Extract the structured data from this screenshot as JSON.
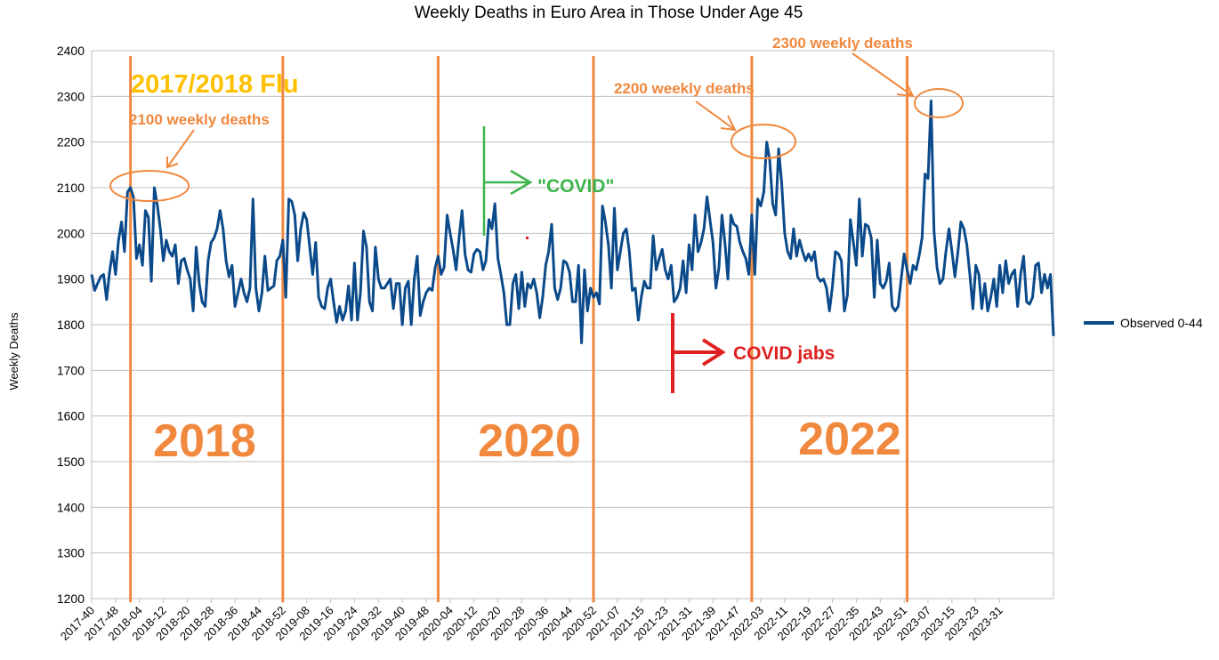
{
  "chart_data": {
    "type": "line",
    "title": "Weekly Deaths in Euro Area in Those Under Age 45",
    "ylabel": "Weekly Deaths",
    "xlabel": "",
    "ylim": [
      1200,
      2400
    ],
    "yticks": [
      1200,
      1300,
      1400,
      1500,
      1600,
      1700,
      1800,
      1900,
      2000,
      2100,
      2200,
      2300,
      2400
    ],
    "grid": true,
    "legend_position": "right",
    "x_tick_labels": [
      "2017-40",
      "2017-48",
      "2018-04",
      "2018-12",
      "2018-20",
      "2018-28",
      "2018-36",
      "2018-44",
      "2018-52",
      "2019-08",
      "2019-16",
      "2019-24",
      "2019-32",
      "2019-40",
      "2019-48",
      "2020-04",
      "2020-12",
      "2020-20",
      "2020-28",
      "2020-36",
      "2020-44",
      "2020-52",
      "2021-07",
      "2021-15",
      "2021-23",
      "2021-31",
      "2021-39",
      "2021-47",
      "2022-03",
      "2022-11",
      "2022-19",
      "2022-27",
      "2022-35",
      "2022-43",
      "2022-51",
      "2023-07",
      "2023-15",
      "2023-23",
      "2023-31"
    ],
    "series": [
      {
        "name": "Observed 0-44",
        "color": "#0b4a8a",
        "values": [
          1910,
          1875,
          1890,
          1905,
          1910,
          1855,
          1915,
          1960,
          1910,
          1985,
          2025,
          1960,
          2090,
          2100,
          2080,
          1945,
          1975,
          1930,
          2050,
          2035,
          1895,
          2100,
          2060,
          2010,
          1940,
          1985,
          1960,
          1950,
          1975,
          1890,
          1940,
          1945,
          1920,
          1900,
          1830,
          1970,
          1890,
          1850,
          1840,
          1940,
          1980,
          1990,
          2010,
          2050,
          2010,
          1940,
          1905,
          1930,
          1840,
          1870,
          1900,
          1870,
          1850,
          1880,
          2075,
          1880,
          1830,
          1870,
          1950,
          1875,
          1880,
          1885,
          1940,
          1950,
          1985,
          1860,
          2075,
          2070,
          2040,
          1940,
          2010,
          2045,
          2030,
          1970,
          1910,
          1980,
          1860,
          1840,
          1835,
          1880,
          1900,
          1850,
          1805,
          1840,
          1810,
          1830,
          1885,
          1810,
          1935,
          1810,
          1870,
          2005,
          1970,
          1850,
          1830,
          1970,
          1900,
          1880,
          1880,
          1890,
          1900,
          1835,
          1890,
          1890,
          1800,
          1880,
          1895,
          1800,
          1900,
          1950,
          1820,
          1850,
          1870,
          1880,
          1875,
          1925,
          1950,
          1910,
          1925,
          2040,
          2000,
          1965,
          1920,
          1990,
          2050,
          1955,
          1920,
          1915,
          1955,
          1965,
          1960,
          1920,
          1940,
          2030,
          2010,
          2065,
          1945,
          1910,
          1870,
          1800,
          1800,
          1890,
          1910,
          1835,
          1915,
          1840,
          1890,
          1880,
          1900,
          1870,
          1815,
          1860,
          1930,
          1960,
          2020,
          1880,
          1855,
          1880,
          1940,
          1935,
          1915,
          1850,
          1850,
          1930,
          1760,
          1920,
          1830,
          1880,
          1860,
          1870,
          1845,
          2060,
          2025,
          1975,
          1880,
          2055,
          1920,
          1960,
          2000,
          2010,
          1960,
          1875,
          1880,
          1810,
          1860,
          1895,
          1880,
          1880,
          1995,
          1920,
          1945,
          1965,
          1920,
          1900,
          1930,
          1850,
          1860,
          1880,
          1940,
          1870,
          1975,
          1920,
          2040,
          1960,
          1980,
          2010,
          2080,
          2030,
          1980,
          1880,
          1925,
          2040,
          1980,
          1900,
          2040,
          2020,
          2015,
          1980,
          1960,
          1945,
          1910,
          2040,
          1910,
          2075,
          2060,
          2090,
          2200,
          2160,
          2065,
          2040,
          2185,
          2110,
          2000,
          1960,
          1945,
          2010,
          1950,
          1985,
          1960,
          1940,
          1955,
          1940,
          1960,
          1905,
          1895,
          1900,
          1880,
          1830,
          1885,
          1960,
          1955,
          1940,
          1830,
          1865,
          2030,
          1980,
          1930,
          2075,
          1950,
          2020,
          2015,
          1990,
          1860,
          1985,
          1890,
          1880,
          1895,
          1935,
          1840,
          1830,
          1840,
          1900,
          1955,
          1920,
          1890,
          1930,
          1920,
          1950,
          1990,
          2130,
          2120,
          2290,
          2005,
          1925,
          1890,
          1900,
          1960,
          2010,
          1960,
          1905,
          1960,
          2025,
          2010,
          1975,
          1910,
          1835,
          1930,
          1910,
          1835,
          1890,
          1830,
          1860,
          1900,
          1840,
          1930,
          1870,
          1940,
          1890,
          1910,
          1920,
          1840,
          1910,
          1950,
          1850,
          1845,
          1860,
          1930,
          1935,
          1870,
          1910,
          1880,
          1910,
          1775
        ]
      }
    ],
    "vertical_markers": [
      {
        "week": "2018-01",
        "label": "2018"
      },
      {
        "week": "2018-52",
        "label": ""
      },
      {
        "week": "2019-52",
        "label": "2020"
      },
      {
        "week": "2020-52",
        "label": ""
      },
      {
        "week": "2021-52",
        "label": "2022"
      },
      {
        "week": "2022-52",
        "label": ""
      }
    ],
    "annotations": {
      "flu_label": "2017/2018 Flu",
      "peak_2100": "2100 weekly deaths",
      "peak_2200": "2200 weekly deaths",
      "peak_2300": "2300 weekly deaths",
      "covid_label": "\"COVID\"",
      "jabs_label": "COVID jabs",
      "year_2018": "2018",
      "year_2020": "2020",
      "year_2022": "2022"
    },
    "annotation_colors": {
      "marker": "#f0883e",
      "flu": "#ffc000",
      "covid": "#3cb44b",
      "jabs": "#e02020"
    }
  }
}
